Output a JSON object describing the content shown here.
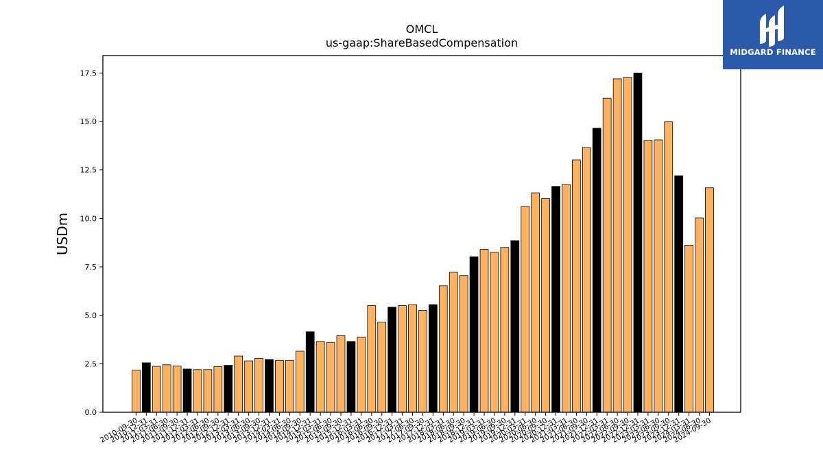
{
  "brand": {
    "name": "MIDGARD FINANCE",
    "background": "#2c5aa8"
  },
  "chart_data": {
    "type": "bar",
    "title": "OMCL",
    "subtitle": "us-gaap:ShareBasedCompensation",
    "xlabel": "",
    "ylabel": "USDm",
    "ylim": [
      0,
      18.4
    ],
    "yticks": [
      0.0,
      2.5,
      5.0,
      7.5,
      10.0,
      12.5,
      15.0,
      17.5
    ],
    "ytick_labels": [
      "0.0",
      "2.5",
      "5.0",
      "7.5",
      "10.0",
      "12.5",
      "15.0",
      "17.5"
    ],
    "grid": false,
    "colors": {
      "quarter": "#ffb361",
      "year_end": "#000000",
      "edge": "#000000"
    },
    "categories": [
      "2010-09-30",
      "2010-12-31",
      "2011-03-31",
      "2011-06-30",
      "2011-09-30",
      "2011-12-31",
      "2012-03-31",
      "2012-06-30",
      "2012-09-30",
      "2012-12-31",
      "2013-03-31",
      "2013-06-30",
      "2013-09-30",
      "2013-12-31",
      "2014-03-31",
      "2014-06-30",
      "2014-09-30",
      "2014-12-31",
      "2015-03-31",
      "2015-06-30",
      "2015-09-30",
      "2015-12-31",
      "2016-03-31",
      "2016-06-30",
      "2016-09-30",
      "2016-12-31",
      "2017-03-31",
      "2017-06-30",
      "2017-09-30",
      "2017-12-31",
      "2018-03-31",
      "2018-06-30",
      "2018-09-30",
      "2018-12-31",
      "2019-03-31",
      "2019-06-30",
      "2019-09-30",
      "2019-12-31",
      "2020-03-31",
      "2020-06-30",
      "2020-09-30",
      "2020-12-31",
      "2021-03-31",
      "2021-06-30",
      "2021-09-30",
      "2021-12-31",
      "2022-03-31",
      "2022-06-30",
      "2022-09-30",
      "2022-12-31",
      "2023-03-31",
      "2023-06-30",
      "2023-09-30",
      "2023-12-31",
      "2024-03-31",
      "2024-06-30",
      "2024-09-30"
    ],
    "values": [
      2.17,
      2.55,
      2.37,
      2.45,
      2.38,
      2.23,
      2.2,
      2.2,
      2.35,
      2.42,
      2.9,
      2.65,
      2.78,
      2.72,
      2.68,
      2.68,
      3.15,
      4.15,
      3.65,
      3.6,
      3.95,
      3.65,
      3.88,
      5.5,
      4.65,
      5.42,
      5.5,
      5.55,
      5.25,
      5.55,
      6.52,
      7.22,
      7.05,
      8.02,
      8.4,
      8.25,
      8.5,
      8.85,
      10.62,
      11.32,
      11.02,
      11.65,
      11.75,
      13.02,
      13.65,
      14.65,
      16.2,
      17.2,
      17.28,
      17.5,
      14.02,
      14.05,
      14.98,
      12.2,
      8.62,
      10.02,
      11.58
    ],
    "year_end_flags": [
      false,
      true,
      false,
      false,
      false,
      true,
      false,
      false,
      false,
      true,
      false,
      false,
      false,
      true,
      false,
      false,
      false,
      true,
      false,
      false,
      false,
      true,
      false,
      false,
      false,
      true,
      false,
      false,
      false,
      true,
      false,
      false,
      false,
      true,
      false,
      false,
      false,
      true,
      false,
      false,
      false,
      true,
      false,
      false,
      false,
      true,
      false,
      false,
      false,
      true,
      false,
      false,
      false,
      true,
      false,
      false,
      false
    ]
  }
}
